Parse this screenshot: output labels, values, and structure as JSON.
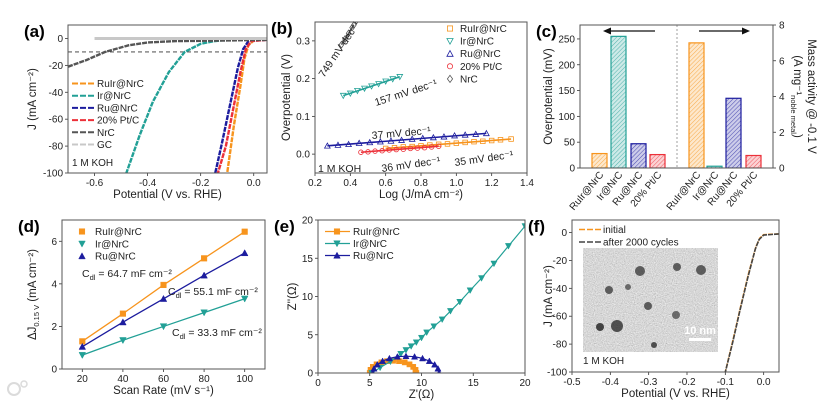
{
  "watermark": "大数跨境",
  "colors": {
    "RuIr@NrC": "#f7941d",
    "Ir@NrC": "#22a096",
    "Ru@NrC": "#1c1c9e",
    "20% Pt/C": "#ec3039",
    "NrC": "#555555",
    "GC": "#c8c8c8"
  },
  "chart_data": [
    {
      "panel_label": "(a)",
      "type": "line",
      "xlabel": "Potential (V vs. RHE)",
      "ylabel": "J (mA cm⁻²)",
      "xlim": [
        -0.7,
        0.05
      ],
      "ylim": [
        -100,
        10
      ],
      "xticks": [
        -0.6,
        -0.4,
        -0.2,
        0.0
      ],
      "xtick_labels": [
        "-0.6",
        "-0.4",
        "-0.2",
        "0.0"
      ],
      "yticks": [
        0,
        -20,
        -40,
        -60,
        -80,
        -100
      ],
      "ytick_labels": [
        "0",
        "-20",
        "-40",
        "-60",
        "-80",
        "-100"
      ],
      "reference_line_y": -10,
      "annotations": [
        "1 M KOH"
      ],
      "series": [
        {
          "name": "RuIr@NrC",
          "color": "#f7941d",
          "points": [
            [
              0.05,
              -1
            ],
            [
              0.0,
              -1.5
            ],
            [
              -0.02,
              -5
            ],
            [
              -0.035,
              -15
            ],
            [
              -0.05,
              -35
            ],
            [
              -0.075,
              -65
            ],
            [
              -0.1,
              -100
            ]
          ]
        },
        {
          "name": "Ir@NrC",
          "color": "#22a096",
          "points": [
            [
              0.05,
              -1
            ],
            [
              -0.1,
              -1
            ],
            [
              -0.15,
              -2
            ],
            [
              -0.2,
              -4
            ],
            [
              -0.26,
              -10
            ],
            [
              -0.32,
              -25
            ],
            [
              -0.38,
              -47
            ],
            [
              -0.43,
              -72
            ],
            [
              -0.48,
              -100
            ]
          ]
        },
        {
          "name": "Ru@NrC",
          "color": "#1c1c9e",
          "points": [
            [
              0.05,
              -1
            ],
            [
              -0.02,
              -2
            ],
            [
              -0.04,
              -8
            ],
            [
              -0.06,
              -22
            ],
            [
              -0.09,
              -50
            ],
            [
              -0.12,
              -78
            ],
            [
              -0.145,
              -100
            ]
          ]
        },
        {
          "name": "20% Pt/C",
          "color": "#ec3039",
          "points": [
            [
              0.05,
              -1
            ],
            [
              -0.01,
              -2
            ],
            [
              -0.03,
              -8
            ],
            [
              -0.05,
              -25
            ],
            [
              -0.08,
              -55
            ],
            [
              -0.105,
              -80
            ],
            [
              -0.135,
              -100
            ]
          ]
        },
        {
          "name": "NrC",
          "color": "#555555",
          "points": [
            [
              0.05,
              -1
            ],
            [
              -0.1,
              -1.5
            ],
            [
              -0.3,
              -2
            ],
            [
              -0.4,
              -3
            ],
            [
              -0.47,
              -5
            ],
            [
              -0.56,
              -10
            ],
            [
              -0.63,
              -16
            ],
            [
              -0.7,
              -21
            ]
          ]
        },
        {
          "name": "GC",
          "color": "#c8c8c8",
          "points": [
            [
              -0.6,
              0
            ],
            [
              0.05,
              0
            ]
          ]
        }
      ]
    },
    {
      "panel_label": "(b)",
      "type": "scatter",
      "xlabel": "Log (J/mA cm⁻²)",
      "ylabel": "Overpotential (V)",
      "xlim": [
        0.2,
        1.4
      ],
      "ylim": [
        -0.05,
        0.35
      ],
      "xticks": [
        0.2,
        0.4,
        0.6,
        0.8,
        1.0,
        1.2,
        1.4
      ],
      "xtick_labels": [
        "0.2",
        "0.4",
        "0.6",
        "0.8",
        "1.0",
        "1.2",
        "1.4"
      ],
      "yticks": [
        0.0,
        0.1,
        0.2,
        0.3
      ],
      "ytick_labels": [
        "0.0",
        "0.1",
        "0.2",
        "0.3"
      ],
      "annotations": [
        "749 mV dec⁻¹",
        "157 mV dec⁻¹",
        "37 mV dec⁻¹",
        "36 mV dec⁻¹",
        "35 mV dec⁻¹",
        "1 M KOH"
      ],
      "series": [
        {
          "name": "RuIr@NrC",
          "color": "#f7941d",
          "marker": "square-open",
          "tafel_slope_mV_dec": 35,
          "points": [
            [
              0.6,
              0.015
            ],
            [
              0.65,
              0.017
            ],
            [
              0.7,
              0.019
            ],
            [
              0.75,
              0.02
            ],
            [
              0.8,
              0.022
            ],
            [
              0.85,
              0.024
            ],
            [
              0.9,
              0.026
            ],
            [
              0.95,
              0.027
            ],
            [
              1.0,
              0.029
            ],
            [
              1.05,
              0.031
            ],
            [
              1.1,
              0.033
            ],
            [
              1.15,
              0.034
            ],
            [
              1.2,
              0.036
            ],
            [
              1.25,
              0.038
            ],
            [
              1.31,
              0.04
            ]
          ]
        },
        {
          "name": "Ir@NrC",
          "color": "#22a096",
          "marker": "tri-down-open",
          "tafel_slope_mV_dec": 157,
          "points": [
            [
              0.36,
              0.155
            ],
            [
              0.4,
              0.161
            ],
            [
              0.44,
              0.168
            ],
            [
              0.48,
              0.174
            ],
            [
              0.52,
              0.18
            ],
            [
              0.56,
              0.186
            ],
            [
              0.6,
              0.193
            ],
            [
              0.64,
              0.199
            ],
            [
              0.68,
              0.205
            ]
          ]
        },
        {
          "name": "Ru@NrC",
          "color": "#1c1c9e",
          "marker": "tri-up-open",
          "tafel_slope_mV_dec": 37,
          "points": [
            [
              0.27,
              0.022
            ],
            [
              0.33,
              0.024
            ],
            [
              0.39,
              0.026
            ],
            [
              0.45,
              0.029
            ],
            [
              0.51,
              0.031
            ],
            [
              0.57,
              0.033
            ],
            [
              0.63,
              0.035
            ],
            [
              0.69,
              0.037
            ],
            [
              0.75,
              0.04
            ],
            [
              0.81,
              0.042
            ],
            [
              0.87,
              0.044
            ],
            [
              0.93,
              0.046
            ],
            [
              0.99,
              0.049
            ],
            [
              1.05,
              0.051
            ],
            [
              1.11,
              0.053
            ],
            [
              1.17,
              0.055
            ]
          ]
        },
        {
          "name": "20% Pt/C",
          "color": "#ec3039",
          "marker": "circle-open",
          "tafel_slope_mV_dec": 36,
          "points": [
            [
              0.46,
              0.005
            ],
            [
              0.5,
              0.006
            ],
            [
              0.54,
              0.008
            ],
            [
              0.58,
              0.009
            ],
            [
              0.62,
              0.011
            ],
            [
              0.66,
              0.012
            ],
            [
              0.7,
              0.013
            ],
            [
              0.74,
              0.015
            ],
            [
              0.78,
              0.016
            ],
            [
              0.82,
              0.017
            ],
            [
              0.86,
              0.019
            ],
            [
              0.9,
              0.021
            ]
          ]
        },
        {
          "name": "NrC",
          "color": "#555555",
          "marker": "diamond-open",
          "tafel_slope_mV_dec": 749,
          "points": [
            [
              0.35,
              0.29
            ],
            [
              0.37,
              0.305
            ],
            [
              0.39,
              0.32
            ],
            [
              0.41,
              0.335
            ],
            [
              0.42,
              0.342
            ]
          ]
        }
      ]
    },
    {
      "panel_label": "(c)",
      "type": "bar",
      "categories": [
        "RuIr@NrC",
        "Ir@NrC",
        "Ru@NrC",
        "20% Pt/C"
      ],
      "ylabel": "Overpotential (mV)",
      "ylabel_right": {
        "line1": "Mass activity @ -0.1 V",
        "main": "(A mg⁻¹",
        "sub": "noble metal",
        "rest": ")"
      },
      "ylim": [
        0,
        277
      ],
      "ylim_right": [
        0,
        8
      ],
      "yticks": [
        0,
        50,
        100,
        150,
        200,
        250
      ],
      "ytick_labels": [
        "0",
        "50",
        "100",
        "150",
        "200",
        "250"
      ],
      "yticks_right": [
        0,
        2,
        4,
        6,
        8
      ],
      "ytick_labels_right": [
        "0",
        "2",
        "4",
        "6",
        "8"
      ],
      "series": [
        {
          "name": "Overpotential (mV)",
          "axis": "left",
          "values": [
            28,
            255,
            47,
            26
          ]
        },
        {
          "name": "Mass activity (A mg⁻¹)",
          "axis": "right",
          "values": [
            7.0,
            0.1,
            3.9,
            0.7
          ]
        }
      ],
      "bar_colors": [
        "#f7941d",
        "#22a096",
        "#1c1c9e",
        "#ec3039"
      ]
    },
    {
      "panel_label": "(d)",
      "type": "scatter",
      "xlabel": "Scan Rate (mV s⁻¹)",
      "ylabel": {
        "main": "ΔJ",
        "sub": "0.15 V",
        "rest": " (mA cm⁻²)"
      },
      "xlim": [
        10,
        110
      ],
      "ylim": [
        0,
        7
      ],
      "xticks": [
        20,
        40,
        60,
        80,
        100
      ],
      "xtick_labels": [
        "20",
        "40",
        "60",
        "80",
        "100"
      ],
      "yticks": [
        0,
        2,
        4,
        6
      ],
      "ytick_labels": [
        "0",
        "2",
        "4",
        "6"
      ],
      "annotations": [
        {
          "main": "C",
          "sub": "dl",
          "rest": " = 64.7 mF cm⁻²"
        },
        {
          "main": "C",
          "sub": "dl",
          "rest": " = 55.1 mF cm⁻²"
        },
        {
          "main": "C",
          "sub": "dl",
          "rest": " = 33.3 mF cm⁻²"
        }
      ],
      "x": [
        20,
        40,
        60,
        80,
        100
      ],
      "series": [
        {
          "name": "RuIr@NrC",
          "color": "#f7941d",
          "marker": "square",
          "values": [
            1.3,
            2.6,
            3.95,
            5.2,
            6.45
          ]
        },
        {
          "name": "Ir@NrC",
          "color": "#22a096",
          "marker": "tri-down",
          "values": [
            0.65,
            1.35,
            2.0,
            2.65,
            3.3
          ]
        },
        {
          "name": "Ru@NrC",
          "color": "#1c1c9e",
          "marker": "tri-up",
          "values": [
            1.05,
            2.2,
            3.3,
            4.4,
            5.45
          ]
        }
      ]
    },
    {
      "panel_label": "(e)",
      "type": "line",
      "xlabel": "Z'(Ω)",
      "ylabel": "Z''(Ω)",
      "xlim": [
        0,
        20
      ],
      "ylim": [
        0,
        20
      ],
      "xticks": [
        0,
        5,
        10,
        15,
        20
      ],
      "xtick_labels": [
        "0",
        "5",
        "10",
        "15",
        "20"
      ],
      "yticks": [
        0,
        5,
        10,
        15,
        20
      ],
      "ytick_labels": [
        "0",
        "5",
        "10",
        "15",
        "20"
      ],
      "series": [
        {
          "name": "RuIr@NrC",
          "color": "#f7941d",
          "marker": "square",
          "points": [
            [
              5.0,
              0
            ],
            [
              5.08,
              0.41
            ],
            [
              5.3,
              0.8
            ],
            [
              5.66,
              1.13
            ],
            [
              6.13,
              1.39
            ],
            [
              6.67,
              1.55
            ],
            [
              7.25,
              1.6
            ],
            [
              7.83,
              1.55
            ],
            [
              8.38,
              1.39
            ],
            [
              8.84,
              1.13
            ],
            [
              9.2,
              0.8
            ],
            [
              9.42,
              0.41
            ],
            [
              9.5,
              0
            ]
          ]
        },
        {
          "name": "Ir@NrC",
          "color": "#22a096",
          "marker": "tri-down",
          "points": [
            [
              5.2,
              0
            ],
            [
              6,
              0.7
            ],
            [
              7,
              1.5
            ],
            [
              8,
              2.5
            ],
            [
              8.5,
              3.0
            ],
            [
              9,
              3.5
            ],
            [
              9.5,
              4.0
            ],
            [
              10,
              4.6
            ],
            [
              10.5,
              5.3
            ],
            [
              11.2,
              6.1
            ],
            [
              12,
              7.0
            ],
            [
              12.8,
              8.1
            ],
            [
              13.7,
              9.3
            ],
            [
              14.7,
              10.8
            ],
            [
              15.8,
              12.4
            ],
            [
              17,
              14.3
            ],
            [
              18.4,
              16.6
            ],
            [
              20,
              19.2
            ]
          ]
        },
        {
          "name": "Ru@NrC",
          "color": "#1c1c9e",
          "marker": "tri-up",
          "points": [
            [
              5.3,
              0
            ],
            [
              5.41,
              0.57
            ],
            [
              5.73,
              1.1
            ],
            [
              6.24,
              1.56
            ],
            [
              6.9,
              1.91
            ],
            [
              7.67,
              2.13
            ],
            [
              8.5,
              2.2
            ],
            [
              9.33,
              2.13
            ],
            [
              10.1,
              1.91
            ],
            [
              10.76,
              1.56
            ],
            [
              11.27,
              1.1
            ],
            [
              11.59,
              0.57
            ],
            [
              11.7,
              0
            ]
          ]
        }
      ]
    },
    {
      "panel_label": "(f)",
      "type": "line",
      "xlabel": "Potential (V vs. RHE)",
      "ylabel": "J (mA cm⁻²)",
      "xlim": [
        -0.5,
        0.04
      ],
      "ylim": [
        -100,
        9
      ],
      "xticks": [
        -0.5,
        -0.4,
        -0.3,
        -0.2,
        -0.1,
        0.0
      ],
      "xtick_labels": [
        "-0.5",
        "-0.4",
        "-0.3",
        "-0.2",
        "-0.1",
        "0.0"
      ],
      "yticks": [
        0,
        -20,
        -40,
        -60,
        -80,
        -100
      ],
      "ytick_labels": [
        "0",
        "-20",
        "-40",
        "-60",
        "-80",
        "-100"
      ],
      "annotations": [
        "1 M KOH"
      ],
      "inset": {
        "scale_bar_label": "10 nm"
      },
      "series": [
        {
          "name": "initial",
          "color": "#f7941d",
          "points": [
            [
              0.04,
              -1
            ],
            [
              0.0,
              -1.5
            ],
            [
              -0.01,
              -4
            ],
            [
              -0.02,
              -10
            ],
            [
              -0.04,
              -30
            ],
            [
              -0.06,
              -53
            ],
            [
              -0.08,
              -77
            ],
            [
              -0.1,
              -100
            ]
          ]
        },
        {
          "name": "after 2000 cycles",
          "color": "#444444",
          "points": [
            [
              0.04,
              -1
            ],
            [
              0.0,
              -1.8
            ],
            [
              -0.012,
              -5
            ],
            [
              -0.022,
              -12
            ],
            [
              -0.042,
              -33
            ],
            [
              -0.062,
              -56
            ],
            [
              -0.081,
              -79
            ],
            [
              -0.1,
              -100
            ]
          ]
        }
      ]
    }
  ]
}
